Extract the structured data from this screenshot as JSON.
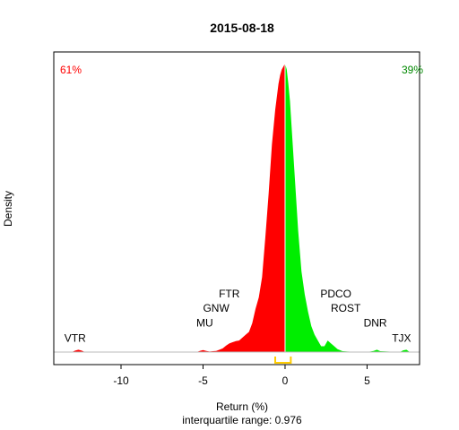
{
  "chart_data": {
    "type": "area",
    "title": "2015-08-18",
    "xlabel": "Return (%)",
    "ylabel": "Density",
    "subtitle": "interquartile range: 0.976",
    "xlim": [
      -14.1,
      8.2
    ],
    "ylim": [
      0,
      1
    ],
    "xticks": [
      -10,
      -5,
      0,
      5
    ],
    "xtick_labels": [
      "-10",
      "-5",
      "0",
      "5"
    ],
    "grid": false,
    "split_at": 0,
    "iqr": [
      -0.6,
      0.35
    ],
    "negative": {
      "label": "61%",
      "color": "#ff0000"
    },
    "positive": {
      "label": "39%",
      "color": "#00ee00"
    },
    "baseline_color": "#bbbbbb",
    "iqr_color": "#ffcc00",
    "density": {
      "x": [
        -13.0,
        -12.8,
        -12.6,
        -12.4,
        -12.2,
        -5.4,
        -5.2,
        -5.0,
        -4.8,
        -4.6,
        -4.4,
        -4.2,
        -4.0,
        -3.8,
        -3.6,
        -3.4,
        -3.2,
        -3.0,
        -2.8,
        -2.6,
        -2.4,
        -2.2,
        -2.0,
        -1.8,
        -1.6,
        -1.4,
        -1.2,
        -1.0,
        -0.8,
        -0.6,
        -0.4,
        -0.3,
        -0.2,
        -0.1,
        0.0,
        0.1,
        0.2,
        0.3,
        0.4,
        0.6,
        0.8,
        1.0,
        1.2,
        1.4,
        1.6,
        1.8,
        2.0,
        2.2,
        2.4,
        2.6,
        2.8,
        3.0,
        3.2,
        3.5,
        3.8,
        4.1,
        4.4,
        5.0,
        5.4,
        5.6,
        5.8,
        7.0,
        7.2,
        7.4,
        7.6
      ],
      "y": [
        0,
        0.005,
        0.008,
        0.005,
        0,
        0,
        0.004,
        0.007,
        0.004,
        0.002,
        0.003,
        0.004,
        0.008,
        0.013,
        0.022,
        0.03,
        0.034,
        0.038,
        0.04,
        0.05,
        0.06,
        0.07,
        0.1,
        0.15,
        0.19,
        0.26,
        0.4,
        0.55,
        0.72,
        0.84,
        0.93,
        0.96,
        0.98,
        0.99,
        1.0,
        0.98,
        0.93,
        0.87,
        0.78,
        0.6,
        0.42,
        0.28,
        0.2,
        0.14,
        0.09,
        0.06,
        0.04,
        0.02,
        0.02,
        0.04,
        0.03,
        0.02,
        0.01,
        0.003,
        0.002,
        0.001,
        0,
        0,
        0.004,
        0.008,
        0.003,
        0,
        0.006,
        0.008,
        0
      ]
    },
    "annotations": [
      {
        "text": "VTR",
        "x": -12.8,
        "y": 0.036
      },
      {
        "text": "MU",
        "x": -4.9,
        "y": 0.089
      },
      {
        "text": "GNW",
        "x": -4.2,
        "y": 0.14
      },
      {
        "text": "FTR",
        "x": -3.4,
        "y": 0.19
      },
      {
        "text": "PDCO",
        "x": 3.1,
        "y": 0.19
      },
      {
        "text": "ROST",
        "x": 3.7,
        "y": 0.14
      },
      {
        "text": "DNR",
        "x": 5.5,
        "y": 0.089
      },
      {
        "text": "TJX",
        "x": 7.1,
        "y": 0.036
      }
    ]
  }
}
